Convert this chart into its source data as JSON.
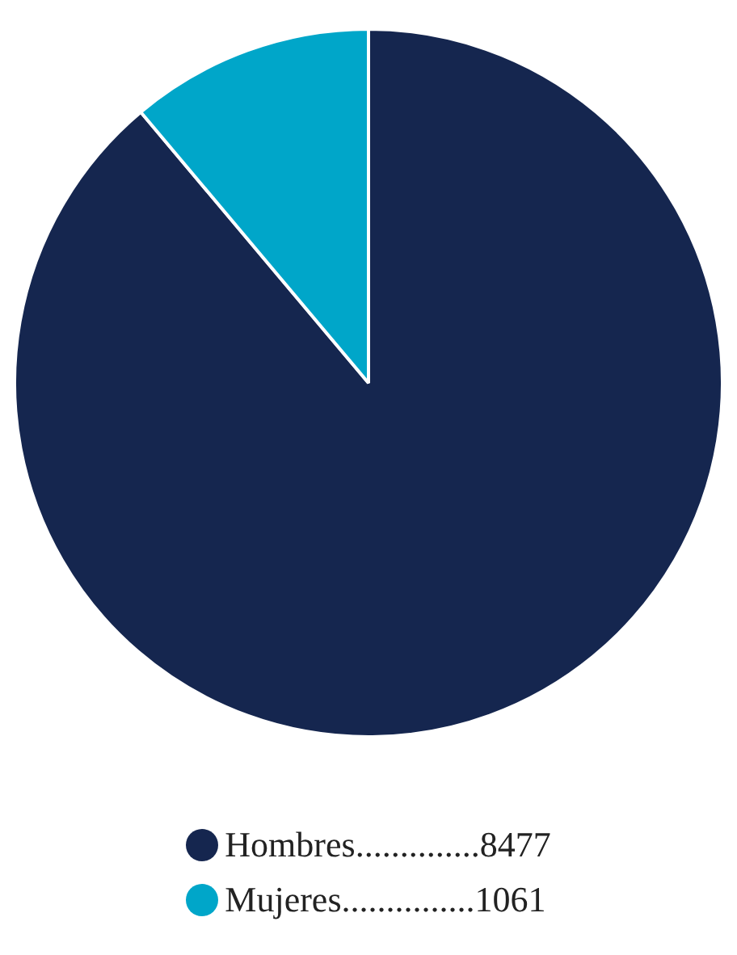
{
  "chart_data": {
    "type": "pie",
    "categories": [
      "Hombres..............",
      "Mujeres..............."
    ],
    "values": [
      8477,
      1061
    ],
    "data_labels": true,
    "colors": [
      "#15264f",
      "#00a6c9"
    ],
    "legend": "bottom"
  }
}
